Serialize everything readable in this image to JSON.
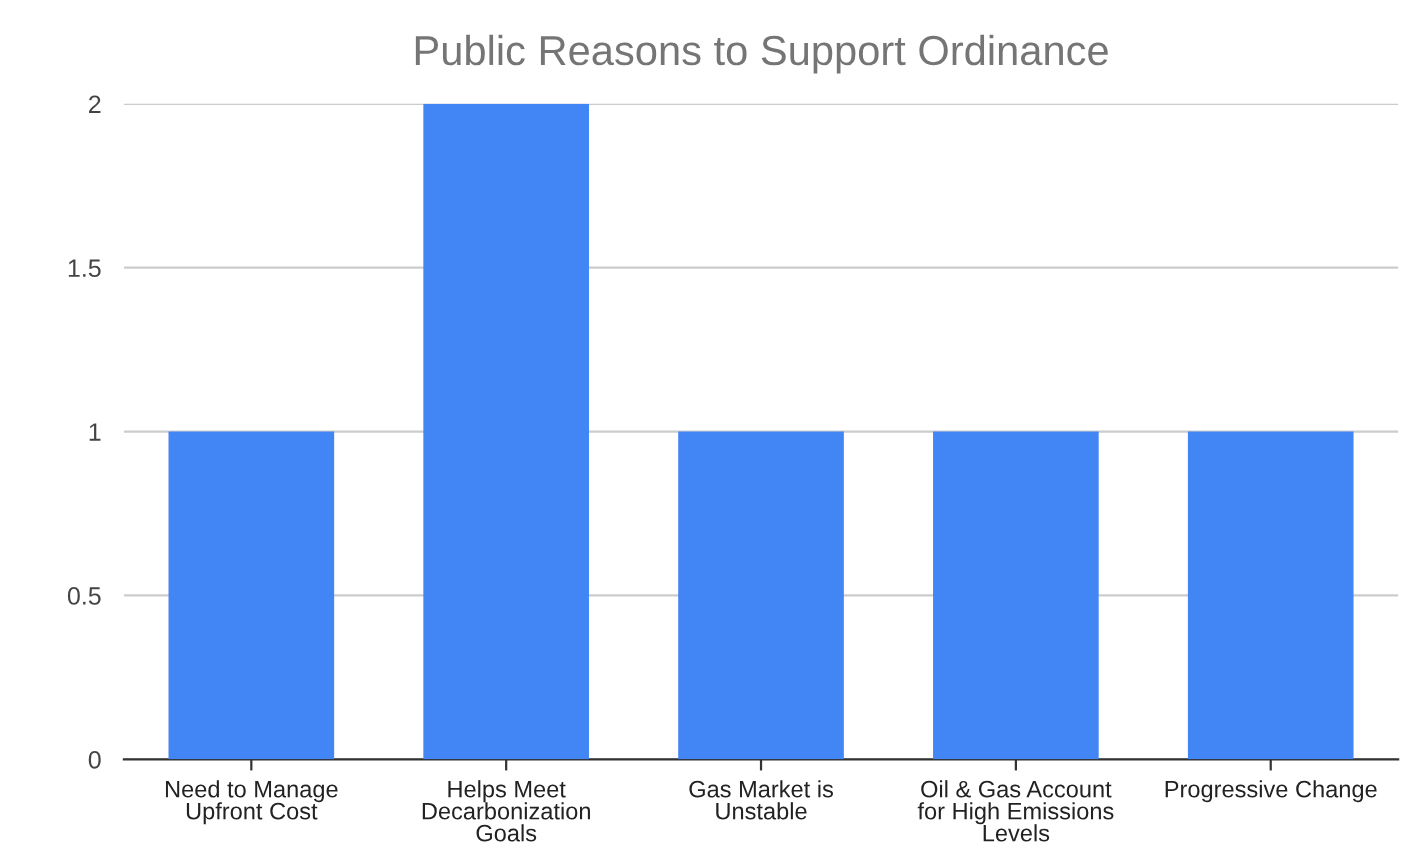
{
  "chart_data": {
    "type": "bar",
    "title": "Public Reasons to Support Ordinance",
    "categories": [
      "Need to Manage\nUpfront Cost",
      "Helps Meet\nDecarbonization\nGoals",
      "Gas Market is\nUnstable",
      "Oil & Gas Account\nfor High Emissions\nLevels",
      "Progressive Change"
    ],
    "values": [
      1,
      2,
      1,
      1,
      1
    ],
    "color": "#4285f4",
    "ylim": [
      0,
      2
    ],
    "yticks": [
      0,
      0.5,
      1,
      1.5,
      2
    ],
    "grid": "y"
  }
}
